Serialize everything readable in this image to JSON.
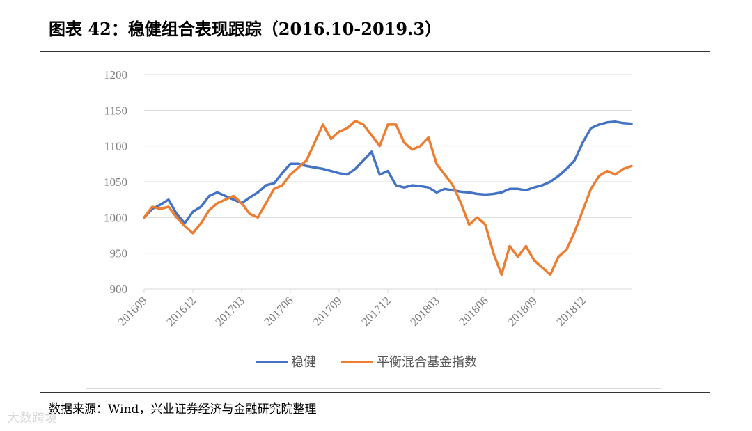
{
  "header": {
    "title": "图表 42：稳健组合表现跟踪（2016.10-2019.3）"
  },
  "footer": {
    "source": "数据来源：Wind，兴业证券经济与金融研究院整理",
    "watermark": "大数跨境"
  },
  "colors": {
    "series1": "#4472c4",
    "series2": "#ed7d31",
    "grid": "#d9d9d9",
    "axis_text": "#7f7f7f"
  },
  "chart_data": {
    "type": "line",
    "title": "",
    "xlabel": "",
    "ylabel": "",
    "ylim": [
      900,
      1200
    ],
    "yticks": [
      "900",
      "950",
      "1000",
      "1050",
      "1100",
      "1150",
      "1200"
    ],
    "xticks": [
      "201609",
      "201612",
      "201703",
      "201706",
      "201709",
      "201712",
      "201803",
      "201806",
      "201809",
      "201812"
    ],
    "grid": true,
    "legend_position": "bottom",
    "x_months": [
      0,
      0.5,
      1,
      1.5,
      2,
      2.5,
      3,
      3.5,
      4,
      4.5,
      5,
      5.5,
      6,
      6.5,
      7,
      7.5,
      8,
      8.5,
      9,
      9.5,
      10,
      10.5,
      11,
      11.5,
      12,
      12.5,
      13,
      13.5,
      14,
      14.5,
      15,
      15.5,
      16,
      16.5,
      17,
      17.5,
      18,
      18.5,
      19,
      19.5,
      20,
      20.5,
      21,
      21.5,
      22,
      22.5,
      23,
      23.5,
      24,
      24.5,
      25,
      25.5,
      26,
      26.5,
      27,
      27.5,
      28,
      28.5,
      29,
      29.5,
      30
    ],
    "series": [
      {
        "name": "稳健",
        "values": [
          1000,
          1012,
          1018,
          1025,
          1005,
          992,
          1008,
          1015,
          1030,
          1035,
          1030,
          1025,
          1020,
          1028,
          1035,
          1045,
          1048,
          1062,
          1075,
          1075,
          1072,
          1070,
          1068,
          1065,
          1062,
          1060,
          1068,
          1080,
          1092,
          1060,
          1065,
          1045,
          1042,
          1045,
          1044,
          1042,
          1035,
          1040,
          1038,
          1036,
          1035,
          1033,
          1032,
          1033,
          1035,
          1040,
          1040,
          1038,
          1042,
          1045,
          1050,
          1058,
          1068,
          1080,
          1105,
          1125,
          1130,
          1133,
          1134,
          1132,
          1131
        ]
      },
      {
        "name": "平衡混合基金指数",
        "values": [
          1000,
          1015,
          1012,
          1015,
          1000,
          988,
          978,
          992,
          1010,
          1020,
          1025,
          1030,
          1020,
          1005,
          1000,
          1020,
          1040,
          1045,
          1060,
          1070,
          1080,
          1105,
          1130,
          1110,
          1120,
          1125,
          1135,
          1130,
          1115,
          1100,
          1130,
          1130,
          1105,
          1095,
          1100,
          1112,
          1075,
          1060,
          1045,
          1020,
          990,
          1000,
          990,
          950,
          920,
          960,
          945,
          960,
          940,
          930,
          920,
          945,
          955,
          980,
          1010,
          1040,
          1058,
          1065,
          1060,
          1068,
          1072
        ]
      }
    ]
  }
}
